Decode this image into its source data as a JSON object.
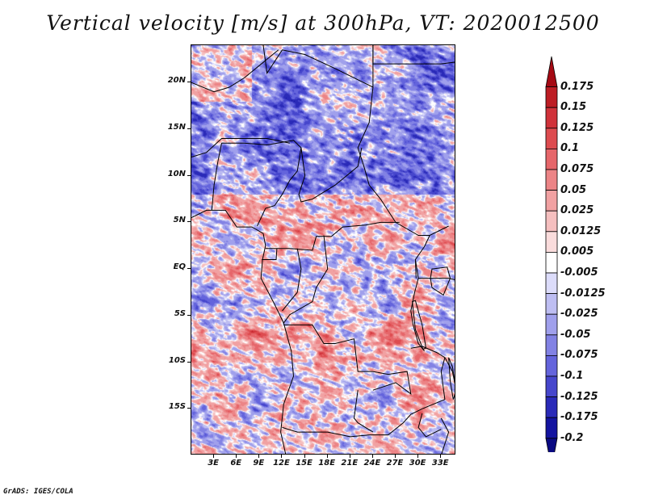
{
  "title": "Vertical velocity [m/s] at 300hPa, VT: 2020012500",
  "credit": "GrADS: IGES/COLA",
  "map": {
    "lon_range": [
      0,
      35
    ],
    "lat_range": [
      -20,
      24
    ],
    "lat_labels": [
      {
        "lat": 20,
        "label": "20N"
      },
      {
        "lat": 15,
        "label": "15N"
      },
      {
        "lat": 10,
        "label": "10N"
      },
      {
        "lat": 5,
        "label": "5N"
      },
      {
        "lat": 0,
        "label": "EQ"
      },
      {
        "lat": -5,
        "label": "5S"
      },
      {
        "lat": -10,
        "label": "10S"
      },
      {
        "lat": -15,
        "label": "15S"
      }
    ],
    "lon_labels": [
      {
        "lon": 3,
        "label": "3E"
      },
      {
        "lon": 6,
        "label": "6E"
      },
      {
        "lon": 9,
        "label": "9E"
      },
      {
        "lon": 12,
        "label": "12E"
      },
      {
        "lon": 15,
        "label": "15E"
      },
      {
        "lon": 18,
        "label": "18E"
      },
      {
        "lon": 21,
        "label": "21E"
      },
      {
        "lon": 24,
        "label": "24E"
      },
      {
        "lon": 27,
        "label": "27E"
      },
      {
        "lon": 30,
        "label": "30E"
      },
      {
        "lon": 33,
        "label": "33E"
      }
    ]
  },
  "colorbar": {
    "labels": [
      "0.175",
      "0.15",
      "0.125",
      "0.1",
      "0.075",
      "0.05",
      "0.025",
      "0.0125",
      "0.005",
      "-0.005",
      "-0.0125",
      "-0.025",
      "-0.05",
      "-0.075",
      "-0.1",
      "-0.125",
      "-0.175",
      "-0.2"
    ],
    "colors": [
      "#a50a14",
      "#bd1d24",
      "#d0323a",
      "#dd4b4f",
      "#e6666a",
      "#ec8486",
      "#f1a1a2",
      "#f5bfbf",
      "#fadcdc",
      "#ffffff",
      "#dcdcfa",
      "#bebef2",
      "#a0a0ec",
      "#8282e4",
      "#6464dc",
      "#4646cc",
      "#2a2ab8",
      "#1414a0",
      "#0a0a82"
    ]
  }
}
